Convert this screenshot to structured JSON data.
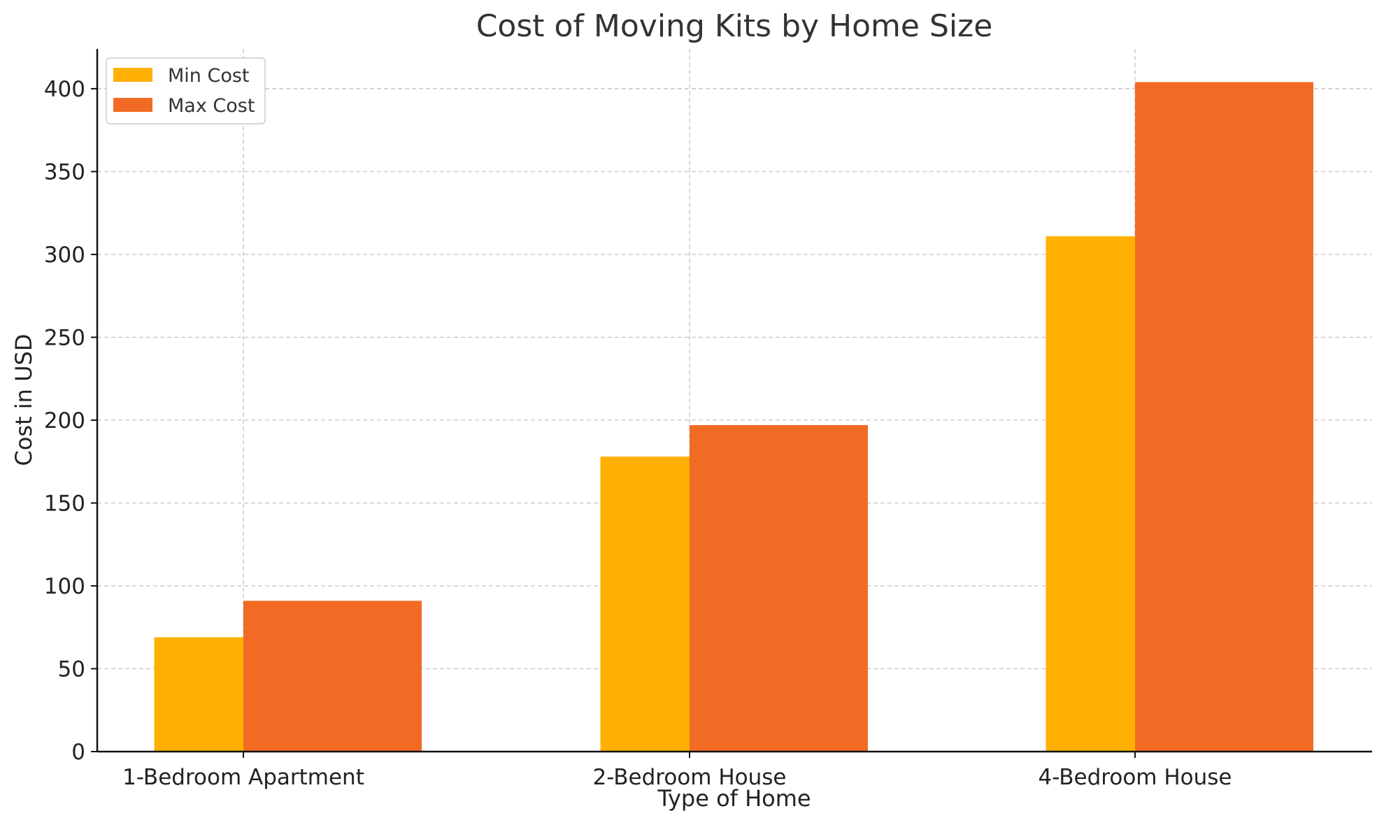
{
  "chart_data": {
    "type": "bar",
    "title": "Cost of Moving Kits by Home Size",
    "xlabel": "Type of Home",
    "ylabel": "Cost in USD",
    "categories": [
      "1-Bedroom Apartment",
      "2-Bedroom House",
      "4-Bedroom House"
    ],
    "series": [
      {
        "name": "Min Cost",
        "values": [
          69,
          178,
          311
        ],
        "color": "#FFB000"
      },
      {
        "name": "Max Cost",
        "values": [
          91,
          197,
          404
        ],
        "color": "#F26B24"
      }
    ],
    "ylim": [
      0,
      424
    ],
    "yticks": [
      0,
      50,
      100,
      150,
      200,
      250,
      300,
      350,
      400
    ],
    "grid": true,
    "legend_position": "top-left"
  }
}
